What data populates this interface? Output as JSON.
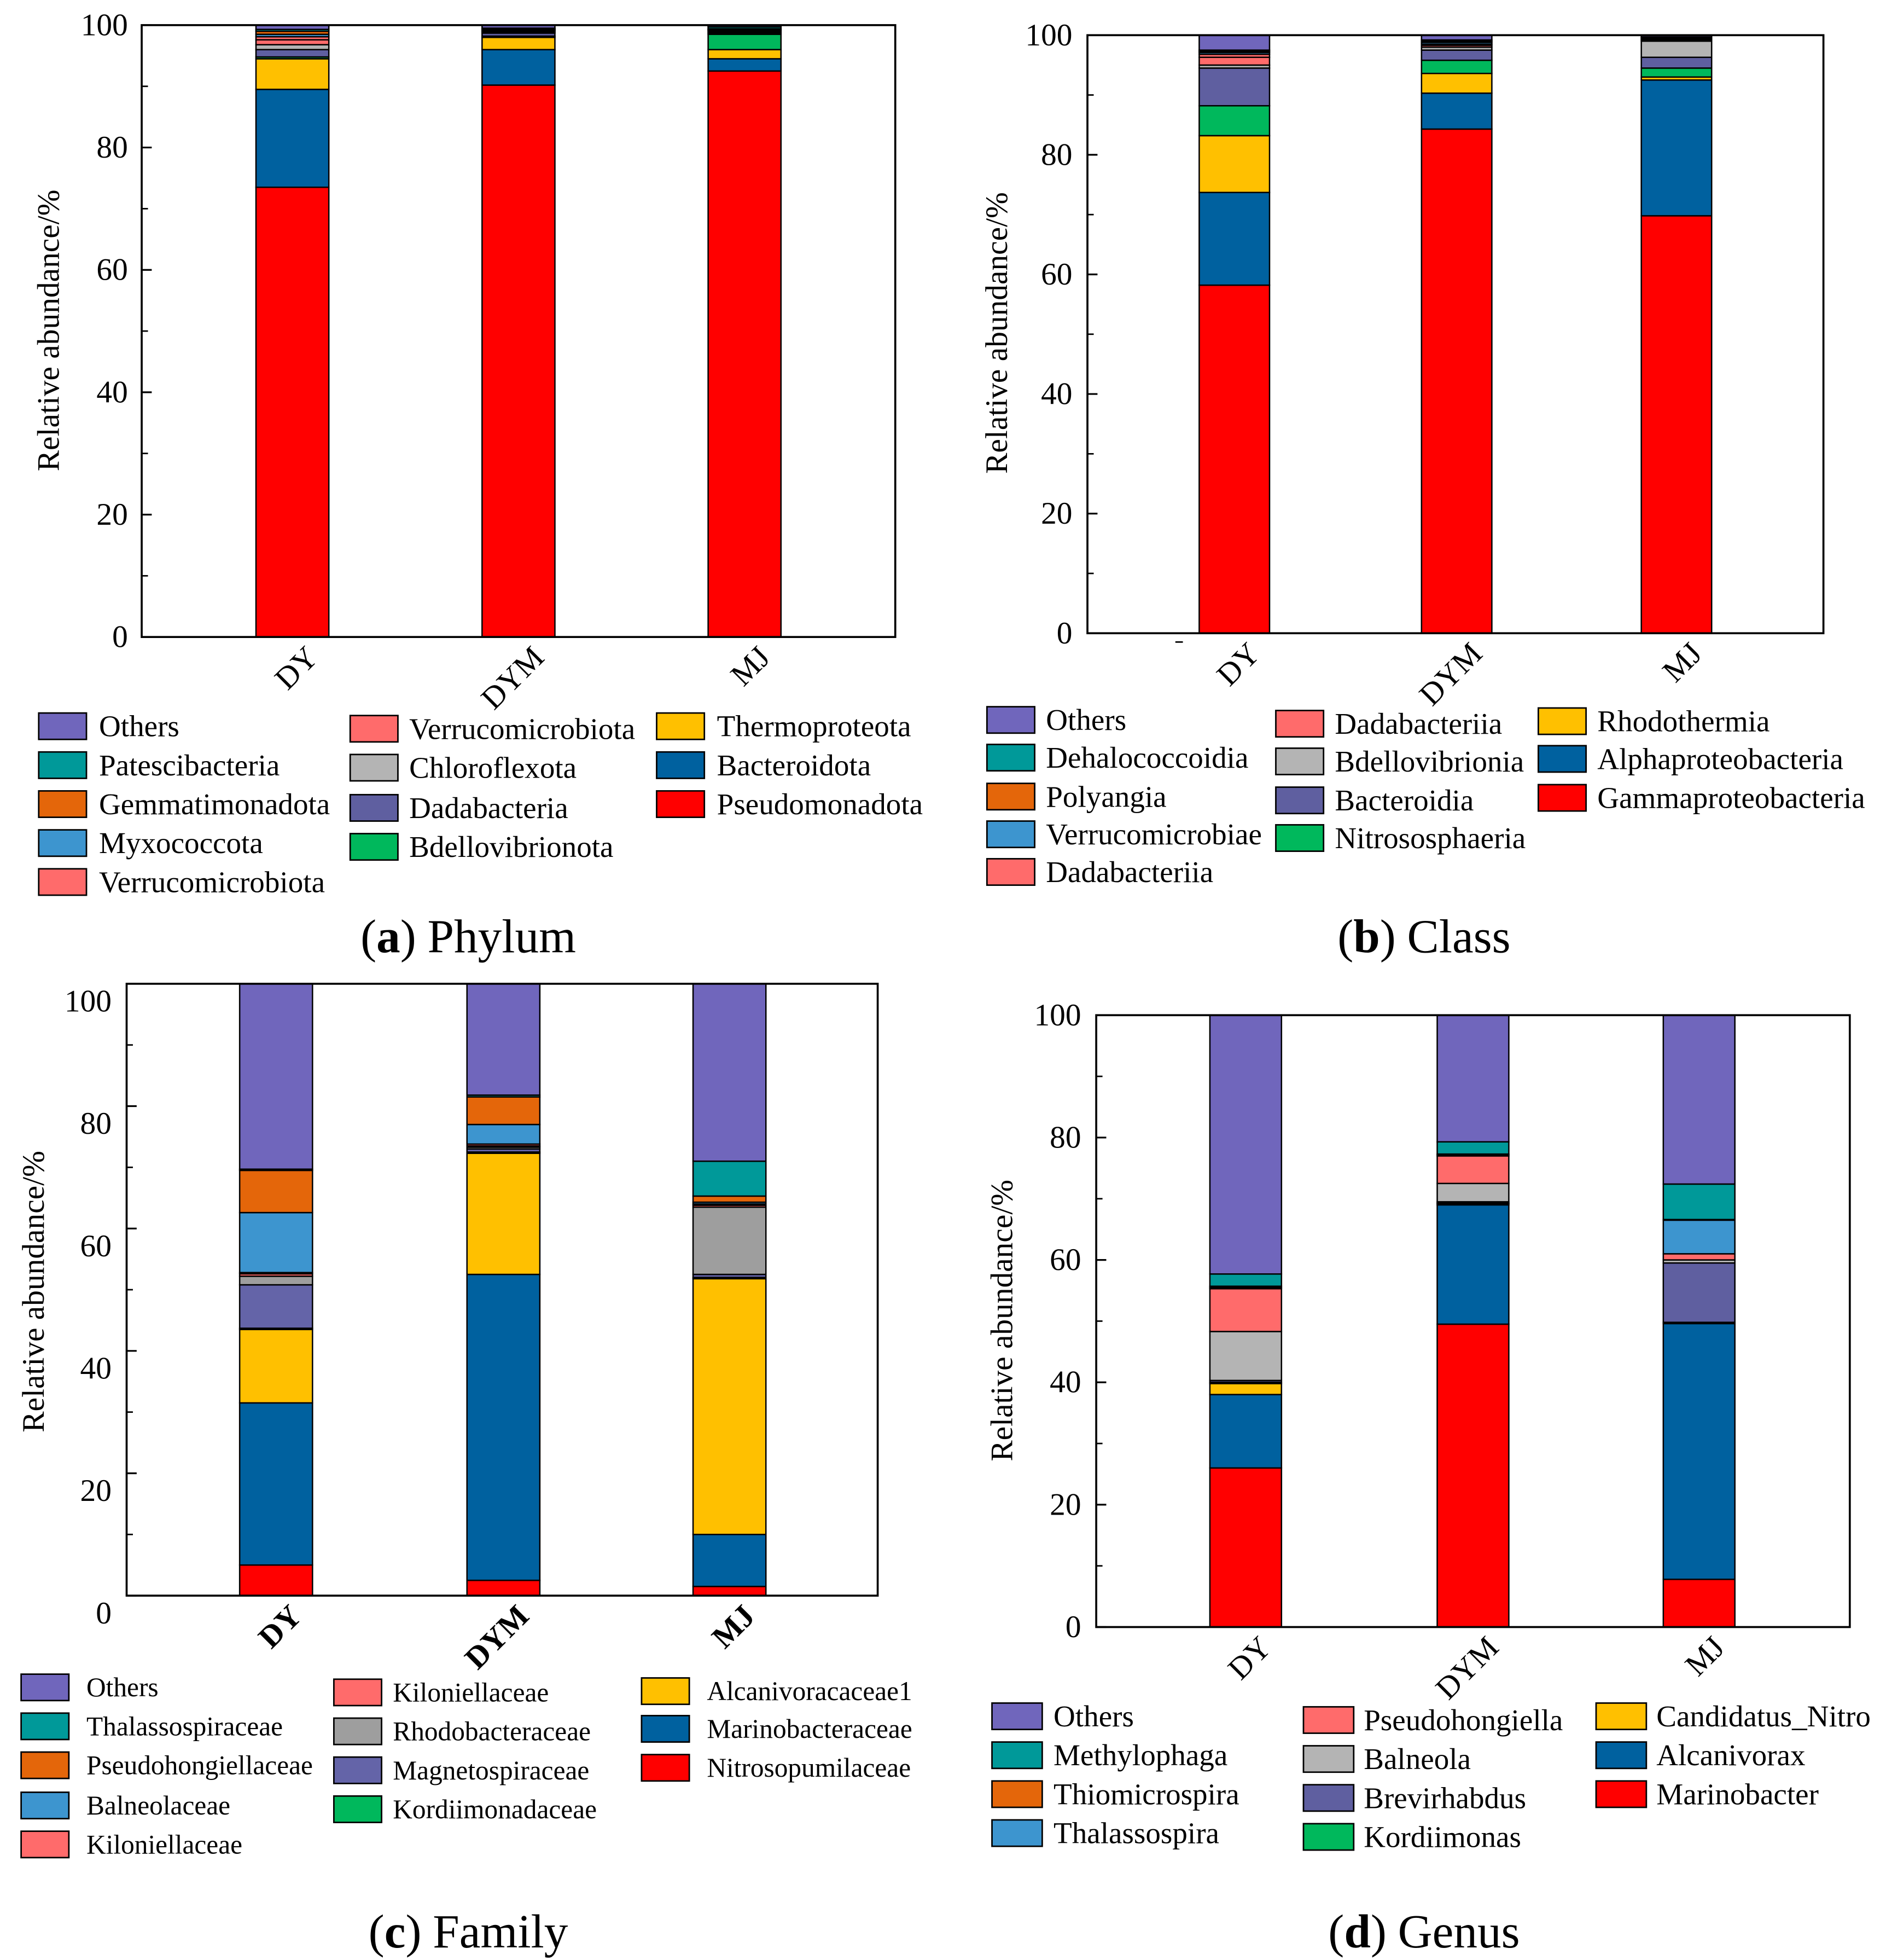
{
  "chart_data": [
    {
      "type": "bar",
      "stacked": true,
      "caption": {
        "open": "(",
        "letter": "a",
        "close": ")",
        "text": "Phylum"
      },
      "categories": [
        "DY",
        "DYM",
        "MJ"
      ],
      "ylabel": "Relative abundance/%",
      "ylim": [
        0,
        100
      ],
      "yticks": [
        0,
        20,
        40,
        60,
        80,
        100
      ],
      "series": [
        {
          "name": "Others",
          "color": "#7066bc",
          "values": [
            0.7,
            0.5,
            0.3
          ]
        },
        {
          "name": "Patescibacteria",
          "color": "#009999",
          "values": [
            0.3,
            0.1,
            0.3
          ]
        },
        {
          "name": "Gemmatimonadota",
          "color": "#e4660a",
          "values": [
            0.5,
            0.1,
            0.1
          ]
        },
        {
          "name": "Myxococcota",
          "color": "#3d95cf",
          "values": [
            0.4,
            0.1,
            0.1
          ]
        },
        {
          "name": "Verrucomicrobiota",
          "color": "#ff6b6b",
          "values": [
            0.5,
            0.1,
            0.1
          ]
        },
        {
          "name": "Verrucomicrobiota",
          "color": "#ff6b6b",
          "values": [
            0.8,
            0.2,
            0.2
          ]
        },
        {
          "name": "Chloroflexota",
          "color": "#b4b4b4",
          "values": [
            0.8,
            0.2,
            0.2
          ]
        },
        {
          "name": "Dadabacteria",
          "color": "#5f5fa0",
          "values": [
            1.2,
            0.5,
            0.2
          ]
        },
        {
          "name": "Bdellovibrionota",
          "color": "#00b85c",
          "values": [
            0.3,
            0.2,
            2.5
          ]
        },
        {
          "name": "Thermoproteota",
          "color": "#ffc000",
          "values": [
            5.0,
            2.0,
            1.5
          ]
        },
        {
          "name": "Bacteroidota",
          "color": "#00619f",
          "values": [
            16.0,
            5.8,
            2.0
          ]
        },
        {
          "name": "Pseudomonadota",
          "color": "#ff0000",
          "values": [
            73.5,
            90.2,
            92.5
          ]
        }
      ]
    },
    {
      "type": "bar",
      "stacked": true,
      "caption": {
        "open": "(",
        "letter": "b",
        "close": ")",
        "text": "Class"
      },
      "categories": [
        "DY",
        "DYM",
        "MJ"
      ],
      "ylabel": "Relative abundance/%",
      "ylim": [
        0,
        100
      ],
      "yticks": [
        0,
        20,
        40,
        60,
        80,
        100
      ],
      "series": [
        {
          "name": "Others",
          "color": "#7066bc",
          "values": [
            2.5,
            0.8,
            0.3
          ]
        },
        {
          "name": "Dehalococcoidia",
          "color": "#009999",
          "values": [
            0.2,
            0.2,
            0.1
          ]
        },
        {
          "name": "Polyangia",
          "color": "#e4660a",
          "values": [
            0.2,
            0.2,
            0.1
          ]
        },
        {
          "name": "Verrucomicrobiae",
          "color": "#3d95cf",
          "values": [
            0.3,
            0.3,
            0.2
          ]
        },
        {
          "name": "Dadabacteriia",
          "color": "#ff6b6b",
          "values": [
            0.5,
            0.2,
            0.1
          ]
        },
        {
          "name": "Dadabacteriia",
          "color": "#ff6b6b",
          "values": [
            1.3,
            0.3,
            0.2
          ]
        },
        {
          "name": "Bdellovibrionia",
          "color": "#b4b4b4",
          "values": [
            0.5,
            0.5,
            2.7
          ]
        },
        {
          "name": "Bacteroidia",
          "color": "#5f5fa0",
          "values": [
            6.3,
            1.7,
            1.8
          ]
        },
        {
          "name": "Nitrososphaeria",
          "color": "#00b85c",
          "values": [
            5.0,
            2.2,
            1.5
          ]
        },
        {
          "name": "Rhodothermia",
          "color": "#ffc000",
          "values": [
            9.5,
            3.3,
            0.5
          ]
        },
        {
          "name": "Alphaproteobacteria",
          "color": "#00619f",
          "values": [
            15.5,
            6.0,
            22.7
          ]
        },
        {
          "name": "Gammaproteobacteria",
          "color": "#ff0000",
          "values": [
            58.2,
            84.3,
            69.8
          ]
        }
      ]
    },
    {
      "type": "bar",
      "stacked": true,
      "caption": {
        "open": "(",
        "letter": "c",
        "close": ")",
        "text": "Family"
      },
      "categories": [
        "DY",
        "DYM",
        "MJ"
      ],
      "ylabel": "Relative abundance/%",
      "ylim": [
        0,
        100
      ],
      "yticks": [
        0,
        20,
        40,
        60,
        80,
        100
      ],
      "series": [
        {
          "name": "Others",
          "color": "#7066bc",
          "values": [
            30.3,
            18.2,
            29.0
          ]
        },
        {
          "name": "Thalassospiraceae",
          "color": "#009999",
          "values": [
            0.2,
            0.3,
            5.7
          ]
        },
        {
          "name": "Pseudohongiellaceae",
          "color": "#e4660a",
          "values": [
            6.9,
            4.5,
            1.0
          ]
        },
        {
          "name": "Balneolaceae",
          "color": "#3d95cf",
          "values": [
            9.8,
            3.2,
            0.3
          ]
        },
        {
          "name": "Kiloniellaceae",
          "color": "#ff6b6b",
          "values": [
            0.2,
            0.3,
            0.2
          ]
        },
        {
          "name": "Kiloniellaceae",
          "color": "#ff6b6b",
          "values": [
            0.4,
            0.2,
            0.3
          ]
        },
        {
          "name": "Rhodobacteraceae",
          "color": "#9e9e9e",
          "values": [
            1.4,
            0.3,
            11.0
          ]
        },
        {
          "name": "Magnetospiraceae",
          "color": "#6464a8",
          "values": [
            7.1,
            0.5,
            0.5
          ]
        },
        {
          "name": "Kordiimonadaceae",
          "color": "#00b85c",
          "values": [
            0.2,
            0.2,
            0.2
          ]
        },
        {
          "name": "Alcanivoracaceae1",
          "color": "#ffc000",
          "values": [
            12.0,
            19.8,
            41.8
          ]
        },
        {
          "name": "Marinobacteraceae",
          "color": "#00619f",
          "values": [
            26.5,
            50.0,
            8.5
          ]
        },
        {
          "name": "Nitrosopumilaceae",
          "color": "#ff0000",
          "values": [
            5.0,
            2.5,
            1.5
          ]
        }
      ]
    },
    {
      "type": "bar",
      "stacked": true,
      "caption": {
        "open": "(",
        "letter": "d",
        "close": ")",
        "text": "Genus"
      },
      "categories": [
        "DY",
        "DYM",
        "MJ"
      ],
      "ylabel": "Relative abundance/%",
      "ylim": [
        0,
        100
      ],
      "yticks": [
        0,
        20,
        40,
        60,
        80,
        100
      ],
      "series": [
        {
          "name": "Others",
          "color": "#7066bc",
          "values": [
            42.3,
            20.7,
            27.6
          ]
        },
        {
          "name": "Methylophaga",
          "color": "#009999",
          "values": [
            2.0,
            2.0,
            5.8
          ]
        },
        {
          "name": "Thiomicrospira",
          "color": "#e4660a",
          "values": [
            0.2,
            0.1,
            0.1
          ]
        },
        {
          "name": "Thalassospira",
          "color": "#3d95cf",
          "values": [
            0.2,
            0.2,
            5.5
          ]
        },
        {
          "name": "Pseudohongiella",
          "color": "#ff6b6b",
          "values": [
            7.0,
            4.5,
            1.0
          ]
        },
        {
          "name": "Balneola",
          "color": "#b4b4b4",
          "values": [
            8.0,
            3.0,
            0.5
          ]
        },
        {
          "name": "Brevirhabdus",
          "color": "#5f5fa0",
          "values": [
            0.3,
            0.2,
            9.7
          ]
        },
        {
          "name": "Kordiimonas",
          "color": "#00b85c",
          "values": [
            0.2,
            0.1,
            0.1
          ]
        },
        {
          "name": "Candidatus_Nitro",
          "color": "#ffc000",
          "values": [
            1.8,
            0.2,
            0.1
          ]
        },
        {
          "name": "Alcanivorax",
          "color": "#00619f",
          "values": [
            12.0,
            19.5,
            41.8
          ]
        },
        {
          "name": "Marinobacter",
          "color": "#ff0000",
          "values": [
            26.0,
            49.5,
            7.8
          ]
        }
      ]
    }
  ]
}
